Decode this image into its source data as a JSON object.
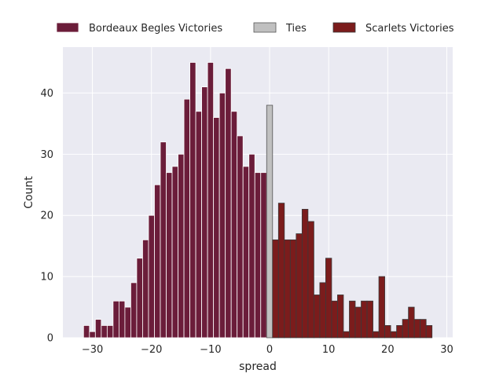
{
  "chart_data": {
    "type": "bar",
    "xlabel": "spread",
    "ylabel": "Count",
    "xlim": [
      -35,
      31
    ],
    "ylim": [
      0,
      47.5
    ],
    "grid": true,
    "legend_placement": "top",
    "x_ticks": [
      -30,
      -20,
      -10,
      0,
      10,
      20,
      30
    ],
    "y_ticks": [
      0,
      10,
      20,
      30,
      40
    ],
    "x_tick_labels": [
      "−30",
      "−20",
      "−10",
      "0",
      "10",
      "20",
      "30"
    ],
    "y_tick_labels": [
      "0",
      "10",
      "20",
      "30",
      "40"
    ],
    "bin_width": 1,
    "colors": {
      "background": "#eaeaf2",
      "grid": "#ffffff",
      "text": "#262626"
    },
    "series": [
      {
        "name": "Bordeaux Begles Victories",
        "color": "#6b1d3a",
        "edge": "#ffffff",
        "x": [
          -31,
          -30,
          -29,
          -28,
          -27,
          -26,
          -25,
          -24,
          -23,
          -22,
          -21,
          -20,
          -19,
          -18,
          -17,
          -16,
          -15,
          -14,
          -13,
          -12,
          -11,
          -10,
          -9,
          -8,
          -7,
          -6,
          -5,
          -4,
          -3,
          -2,
          -1
        ],
        "values": [
          2,
          1,
          3,
          2,
          2,
          6,
          6,
          5,
          9,
          13,
          16,
          20,
          25,
          32,
          27,
          28,
          30,
          39,
          45,
          37,
          41,
          45,
          36,
          40,
          44,
          37,
          33,
          28,
          30,
          27,
          27
        ]
      },
      {
        "name": "Ties",
        "color": "#c0c0c0",
        "edge": "#555555",
        "x": [
          0
        ],
        "values": [
          38
        ]
      },
      {
        "name": "Scarlets Victories",
        "color": "#7b1c1c",
        "edge": "#3a3a3a",
        "x": [
          1,
          2,
          3,
          4,
          5,
          6,
          7,
          8,
          9,
          10,
          11,
          12,
          13,
          14,
          15,
          16,
          17,
          18,
          19,
          20,
          21,
          22,
          23,
          24,
          25,
          26,
          27
        ],
        "values": [
          16,
          22,
          16,
          16,
          17,
          21,
          19,
          7,
          9,
          13,
          6,
          7,
          1,
          6,
          5,
          6,
          6,
          1,
          10,
          2,
          1,
          2,
          3,
          5,
          3,
          3,
          2
        ]
      }
    ]
  }
}
